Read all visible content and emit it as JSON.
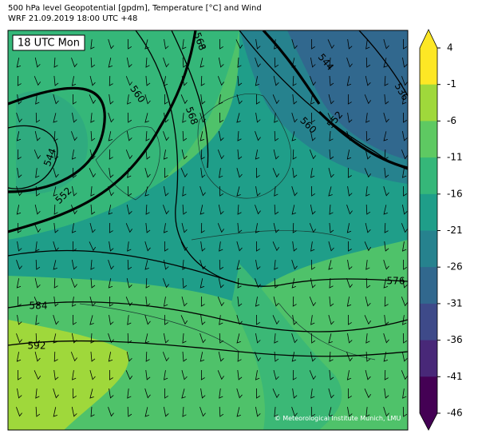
{
  "header": {
    "line1": "500 hPa level Geopotential [gpdm], Temperature [°C] and Wind",
    "line2": "WRF 21.09.2019 18:00 UTC +48"
  },
  "map": {
    "badge": "18 UTC Mon",
    "contour_labels": [
      "568",
      "544",
      "536",
      "560",
      "568",
      "552",
      "560",
      "544",
      "552",
      "576",
      "584",
      "592"
    ],
    "copyright": "© Meteorological Institute Munich, LMU"
  },
  "colorbar": {
    "ticks": [
      4,
      -1,
      -6,
      -11,
      -16,
      -21,
      -26,
      -31,
      -36,
      -41,
      -46
    ],
    "colors": [
      "#fde725",
      "#9fd83b",
      "#5ec962",
      "#35b779",
      "#1f9e89",
      "#26828e",
      "#31688e",
      "#3e4a89",
      "#482878",
      "#440154"
    ]
  }
}
